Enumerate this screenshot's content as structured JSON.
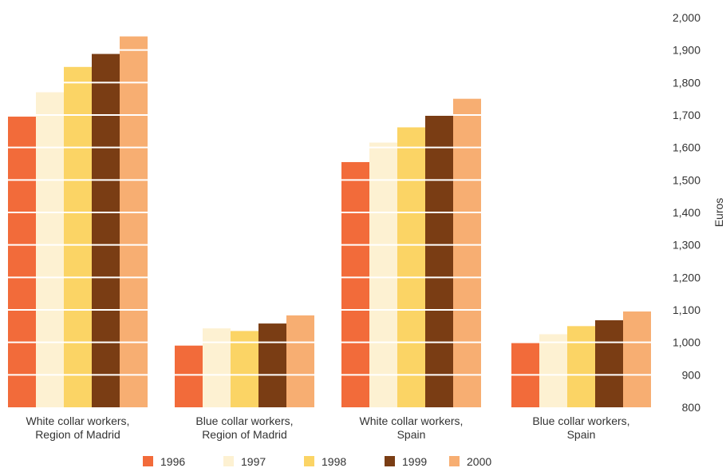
{
  "chart_data": {
    "type": "bar",
    "categories": [
      [
        "White collar workers,",
        "Region of Madrid"
      ],
      [
        "Blue collar workers,",
        "Region of Madrid"
      ],
      [
        "White collar workers,",
        "Spain"
      ],
      [
        "Blue collar workers,",
        "Spain"
      ]
    ],
    "series": [
      {
        "name": "1996",
        "color": "#f26b3a",
        "values": [
          1695,
          990,
          1555,
          1000
        ]
      },
      {
        "name": "1997",
        "color": "#fdf1d2",
        "values": [
          1770,
          1043,
          1615,
          1025
        ]
      },
      {
        "name": "1998",
        "color": "#fbd465",
        "values": [
          1848,
          1035,
          1662,
          1050
        ]
      },
      {
        "name": "1999",
        "color": "#7a3d14",
        "values": [
          1888,
          1058,
          1700,
          1068
        ]
      },
      {
        "name": "2000",
        "color": "#f7ae72",
        "values": [
          1942,
          1083,
          1750,
          1095
        ]
      }
    ],
    "ylabel": "Euros",
    "ylim": [
      800,
      2000
    ],
    "yticks": [
      "800",
      "900",
      "1,000",
      "1,100",
      "1,200",
      "1,300",
      "1,400",
      "1,500",
      "1,600",
      "1,700",
      "1,800",
      "1,900",
      "2,000"
    ],
    "ytick_values": [
      800,
      900,
      1000,
      1100,
      1200,
      1300,
      1400,
      1500,
      1600,
      1700,
      1800,
      1900,
      2000
    ],
    "y_axis_position": "right",
    "gridlines": "white lines drawn across bars",
    "legend_position": "bottom"
  }
}
